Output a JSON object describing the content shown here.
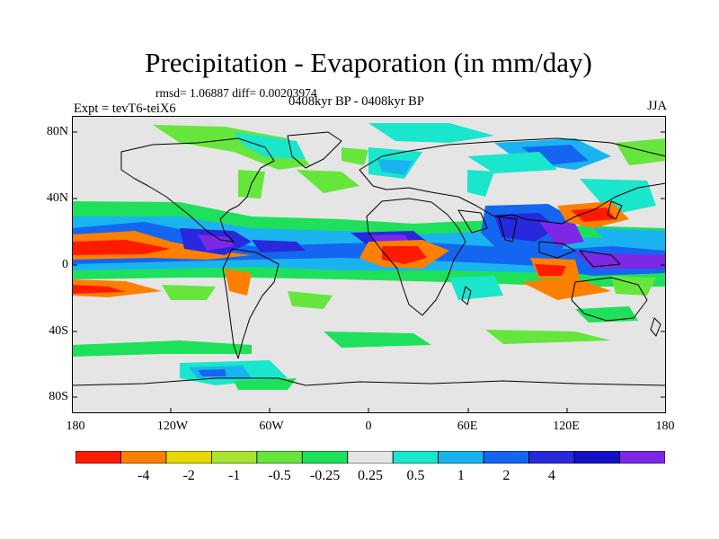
{
  "title": "Precipitation - Evaporation (in mm/day)",
  "stats": "rmsd= 1.06887 diff= 0.00203974",
  "experiment": "Expt = tevT6-teiX6",
  "period": "0408kyr BP - 0408kyr BP",
  "season": "JJA",
  "lat_labels": [
    "80N",
    "40N",
    "0",
    "40S",
    "80S"
  ],
  "lon_labels": [
    "180",
    "120W",
    "60W",
    "0",
    "60E",
    "120E",
    "180"
  ],
  "colorbar": {
    "colors": [
      "#ff1a00",
      "#ff7f00",
      "#e6d800",
      "#a6e632",
      "#66e63c",
      "#1fe05a",
      "#e5e5e5",
      "#19e6cc",
      "#19b4f0",
      "#1466f0",
      "#2828dc",
      "#1410c8",
      "#7d28e6"
    ],
    "labels": [
      "-4",
      "-2",
      "-1",
      "-0.5",
      "-0.25",
      "0.25",
      "0.5",
      "1",
      "2",
      "4"
    ]
  }
}
